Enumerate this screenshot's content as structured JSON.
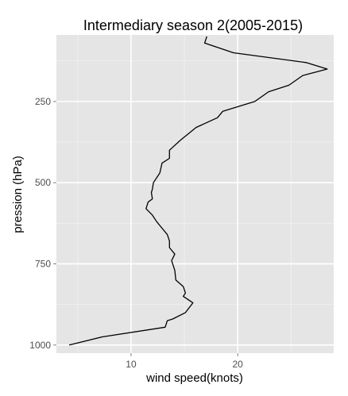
{
  "chart_data": {
    "type": "line",
    "title": "Intermediary season 2(2005-2015)",
    "xlabel": "wind speed(knots)",
    "ylabel": "pression (hPa)",
    "xlim": [
      3.0,
      29.0
    ],
    "ylim": [
      1025,
      45
    ],
    "y_reversed": true,
    "x_ticks": [
      10,
      20
    ],
    "y_ticks": [
      250,
      500,
      750,
      1000
    ],
    "grid": true,
    "series": [
      {
        "x": [
          17.1,
          16.9,
          19.6,
          26.4,
          28.4,
          26.1,
          24.8,
          22.9,
          21.6,
          18.6,
          18.1,
          16.1,
          14.6,
          13.6,
          13.6,
          12.9,
          12.7,
          12.1,
          12.0,
          11.9,
          12.0,
          11.6,
          11.4,
          12.0,
          12.4,
          12.9,
          13.4,
          13.6,
          13.6,
          14.1,
          13.8,
          14.1,
          14.2,
          14.9,
          15.1,
          14.9,
          15.8,
          15.1,
          13.9,
          13.4,
          13.2,
          7.3,
          4.2
        ],
        "y": [
          50,
          70,
          100,
          130,
          150,
          170,
          200,
          220,
          250,
          280,
          300,
          330,
          370,
          400,
          425,
          440,
          470,
          500,
          520,
          530,
          550,
          560,
          580,
          600,
          620,
          640,
          660,
          680,
          700,
          720,
          740,
          770,
          800,
          820,
          840,
          850,
          870,
          900,
          920,
          925,
          945,
          975,
          1000
        ]
      }
    ]
  }
}
